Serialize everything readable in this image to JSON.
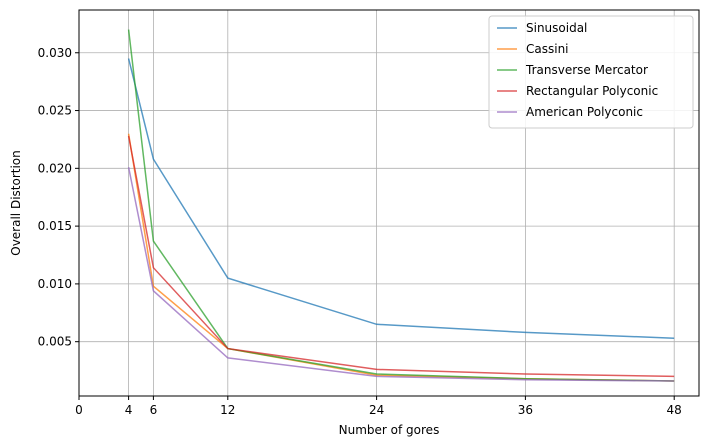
{
  "chart_data": {
    "type": "line",
    "xlabel": "Number of gores",
    "ylabel": "Overall Distortion",
    "xlim": [
      0,
      50
    ],
    "ylim": [
      0.0003,
      0.0337
    ],
    "xticks": [
      0,
      4,
      6,
      12,
      24,
      36,
      48
    ],
    "yticks": [
      0.005,
      0.01,
      0.015,
      0.02,
      0.025,
      0.03
    ],
    "ytick_labels": [
      "0.005",
      "0.010",
      "0.015",
      "0.020",
      "0.025",
      "0.030"
    ],
    "grid": true,
    "legend_position": "top-right",
    "x": [
      4,
      6,
      12,
      24,
      36,
      48
    ],
    "series": [
      {
        "name": "Sinusoidal",
        "color": "#1f77b4",
        "values": [
          0.0295,
          0.0208,
          0.0105,
          0.0065,
          0.0058,
          0.0053
        ]
      },
      {
        "name": "Cassini",
        "color": "#ff7f0e",
        "values": [
          0.023,
          0.0098,
          0.0044,
          0.0021,
          0.0018,
          0.0016
        ]
      },
      {
        "name": "Transverse Mercator",
        "color": "#2ca02c",
        "values": [
          0.032,
          0.0137,
          0.0044,
          0.0022,
          0.0018,
          0.0016
        ]
      },
      {
        "name": "Rectangular Polyconic",
        "color": "#d62728",
        "values": [
          0.0228,
          0.0114,
          0.0044,
          0.0026,
          0.0022,
          0.002
        ]
      },
      {
        "name": "American Polyconic",
        "color": "#9467bd",
        "values": [
          0.0201,
          0.0094,
          0.0036,
          0.002,
          0.0017,
          0.0016
        ]
      }
    ]
  }
}
